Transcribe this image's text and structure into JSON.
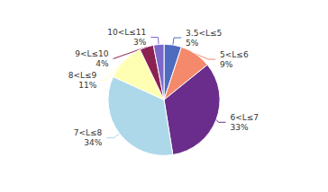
{
  "chart_data": {
    "type": "pie",
    "categories": [
      "3.5<L≤5",
      "5<L≤6",
      "6<L≤7",
      "7<L≤8",
      "8<L≤9",
      "9<L≤10",
      "10<L≤11"
    ],
    "values": [
      5,
      9,
      33,
      34,
      11,
      4,
      3
    ],
    "value_labels": [
      "5%",
      "9%",
      "33%",
      "34%",
      "11%",
      "4%",
      "3%"
    ],
    "colors": [
      "#4f6bbf",
      "#f4896b",
      "#6b2d8b",
      "#add8ea",
      "#ffffb3",
      "#8b2252",
      "#7b68c8"
    ],
    "data_labels": true
  }
}
